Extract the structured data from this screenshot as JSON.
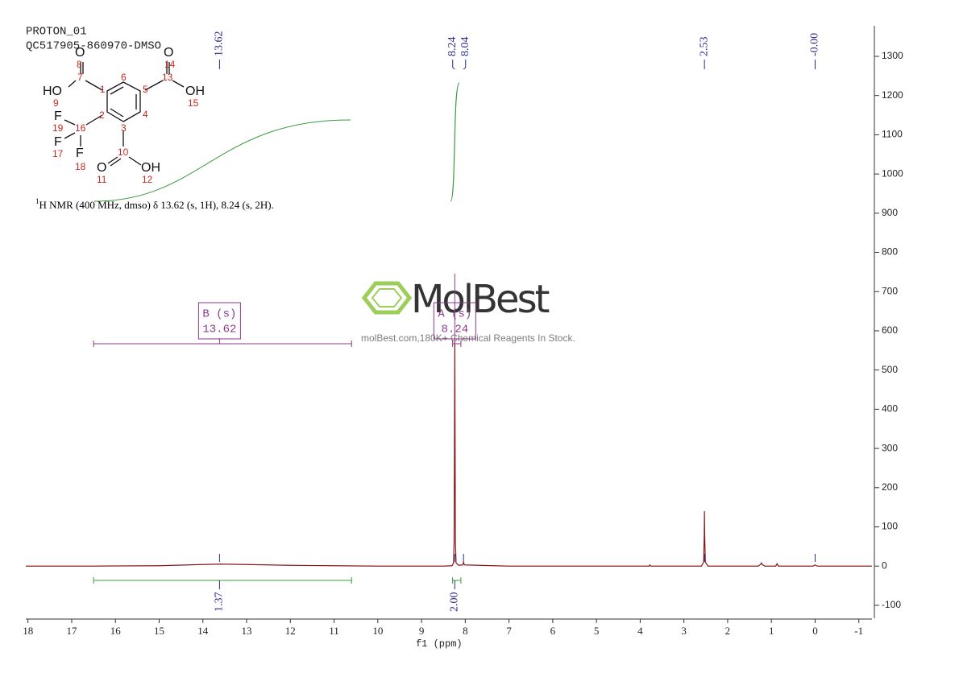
{
  "header": {
    "experiment": "PROTON_01",
    "sample": "QC517905-860970-DMSO"
  },
  "molecule": {
    "atom_symbols": [
      "O",
      "HO",
      "O",
      "OH",
      "F",
      "F",
      "F",
      "O",
      "OH"
    ],
    "atom_numbers": [
      "8",
      "9",
      "14",
      "15",
      "19",
      "17",
      "18",
      "11",
      "12",
      "1",
      "2",
      "3",
      "4",
      "5",
      "6",
      "7",
      "10",
      "13",
      "16"
    ]
  },
  "description": {
    "superscript": "1",
    "text": "H NMR (400 MHz, dmso) δ 13.62 (s, 1H), 8.24 (s, 2H)."
  },
  "watermark": {
    "logo": "MolBest",
    "slogan": "molBest.com,180K+ Chemical Reagents In Stock."
  },
  "chart_data": {
    "type": "nmr",
    "x_label": "f1 (ppm)",
    "xlim": [
      18.05,
      -1.3
    ],
    "xticks": [
      18,
      17,
      16,
      15,
      14,
      13,
      12,
      11,
      10,
      9,
      8,
      7,
      6,
      5,
      4,
      3,
      2,
      1,
      0,
      -1
    ],
    "ylim": [
      -133,
      1378
    ],
    "yticks": [
      -100,
      0,
      100,
      200,
      300,
      400,
      500,
      600,
      700,
      800,
      900,
      1000,
      1100,
      1200,
      1300
    ],
    "series": [
      {
        "color": "#8b1a1a",
        "x": [
          18.05,
          16.5,
          15,
          14,
          13.62,
          13,
          12,
          11,
          10,
          9,
          8.5,
          8.3,
          8.27,
          8.255,
          8.245,
          8.24,
          8.235,
          8.225,
          8.21,
          8.15,
          8.06,
          8.04,
          8.02,
          7,
          4,
          3.8,
          3.78,
          3.76,
          2.6,
          2.55,
          2.535,
          2.53,
          2.525,
          2.51,
          2.45,
          1.3,
          1.25,
          1.23,
          1.21,
          1.15,
          0.9,
          0.87,
          0.84,
          0.05,
          0,
          -0.05,
          -1.3
        ],
        "values": [
          0,
          0,
          1,
          4,
          5,
          4,
          2,
          1,
          0,
          0,
          0,
          1,
          8,
          60,
          400,
          571,
          400,
          60,
          8,
          2,
          3,
          10,
          3,
          0,
          0,
          0,
          3,
          0,
          0,
          10,
          80,
          140,
          80,
          10,
          0,
          0,
          4,
          8,
          4,
          0,
          0,
          6,
          0,
          0,
          3,
          0,
          0
        ]
      }
    ],
    "peak_labels": [
      13.62,
      8.24,
      8.04,
      2.53,
      {
        "value": 0,
        "label": "-0.00"
      }
    ],
    "peak_color": "#2a2a8a",
    "multiplets": [
      {
        "name": "B (s)",
        "shift": 13.62,
        "range": [
          16.5,
          10.6
        ]
      },
      {
        "name": "A (s)",
        "shift": 8.24,
        "range": [
          8.29,
          8.1
        ]
      }
    ],
    "multiplet_color": "#8a3a8a",
    "integrals": {
      "ranges": [
        [
          16.5,
          10.6
        ],
        [
          8.29,
          8.1
        ]
      ],
      "values": [
        1.37,
        2
      ],
      "value_labels": [
        "1.37",
        "2.00"
      ],
      "color": "#3a9a3a"
    }
  }
}
